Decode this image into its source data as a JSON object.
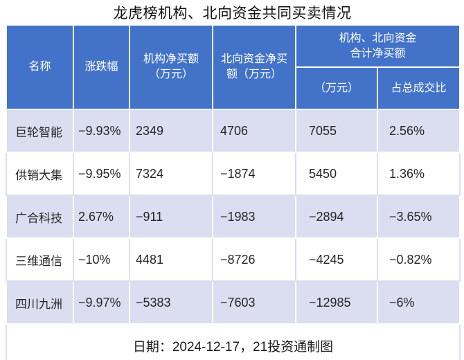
{
  "title": "龙虎榜机构、北向资金共同买卖情况",
  "colors": {
    "header_bg": "#4273C8",
    "header_text": "#FFFFFF",
    "row_alt_bg": "#DBDDF0",
    "row_bg": "#FFFFFF",
    "body_text": "#262626"
  },
  "table": {
    "headers": {
      "name": "名称",
      "change": "涨跌幅",
      "inst_net_buy": "机构净买额\n（万元）",
      "north_net_buy": "北向资金净买\n额（万元）",
      "combined": "机构、北向资金\n合计净买额",
      "combined_wan": "（万元）",
      "combined_pct": "占总成交比"
    },
    "rows": [
      {
        "name": "巨轮智能",
        "change": "−9.93%",
        "inst": "2349",
        "north": "4706",
        "total": "7055",
        "pct": "2.56%"
      },
      {
        "name": "供销大集",
        "change": "−9.95%",
        "inst": "7324",
        "north": "−1874",
        "total": "5450",
        "pct": "1.36%"
      },
      {
        "name": "广合科技",
        "change": "2.67%",
        "inst": "−911",
        "north": "−1983",
        "total": "−2894",
        "pct": "−3.65%"
      },
      {
        "name": "三维通信",
        "change": "−10%",
        "inst": "4481",
        "north": "−8726",
        "total": "−4245",
        "pct": "−0.82%"
      },
      {
        "name": "四川九洲",
        "change": "−9.97%",
        "inst": "−5383",
        "north": "−7603",
        "total": "−12985",
        "pct": "−6%"
      }
    ],
    "footer": "日期：2024-12-17，21投资通制图"
  },
  "chart_data": {
    "type": "table",
    "title": "龙虎榜机构、北向资金共同买卖情况",
    "columns": [
      "名称",
      "涨跌幅",
      "机构净买额（万元）",
      "北向资金净买额（万元）",
      "机构、北向资金合计净买额（万元）",
      "机构、北向资金合计净买额占总成交比"
    ],
    "rows": [
      [
        "巨轮智能",
        "-9.93%",
        2349,
        4706,
        7055,
        "2.56%"
      ],
      [
        "供销大集",
        "-9.95%",
        7324,
        -1874,
        5450,
        "1.36%"
      ],
      [
        "广合科技",
        "2.67%",
        -911,
        -1983,
        -2894,
        "-3.65%"
      ],
      [
        "三维通信",
        "-10%",
        4481,
        -8726,
        -4245,
        "-0.82%"
      ],
      [
        "四川九洲",
        "-9.97%",
        -5383,
        -7603,
        -12985,
        "-6%"
      ]
    ],
    "note": "日期：2024-12-17，21投资通制图"
  }
}
